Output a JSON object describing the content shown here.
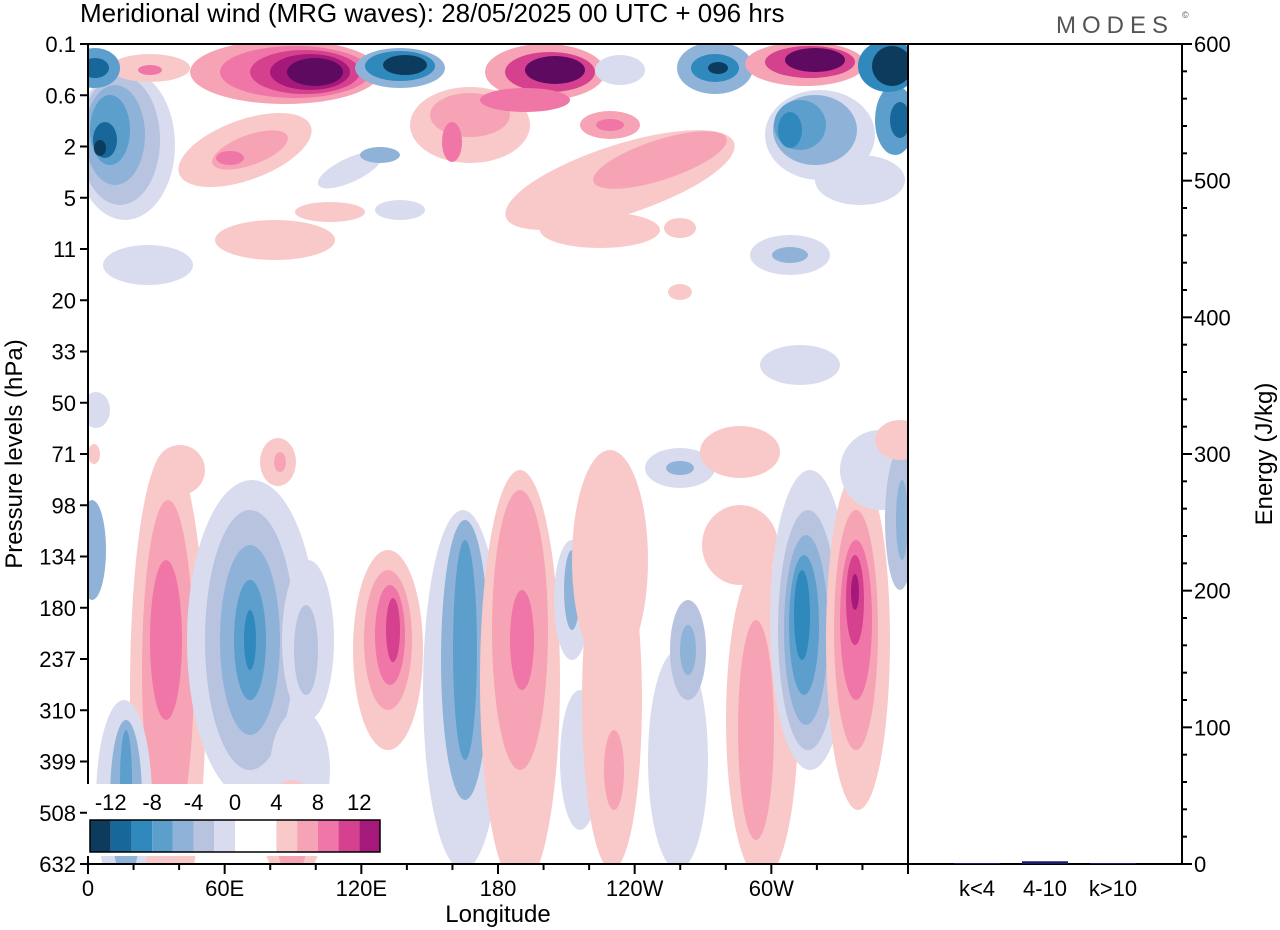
{
  "header": {
    "title": "Meridional wind (MRG waves):  28/05/2025  00 UTC  + 096 hrs",
    "brand": "MODES",
    "brand_mark": "©"
  },
  "chart_data": [
    {
      "type": "heatmap",
      "xlabel": "Longitude",
      "ylabel": "Pressure levels (hPa)",
      "x_ticks": [
        "0",
        "60E",
        "120E",
        "180",
        "120W",
        "60W"
      ],
      "x_tick_degrees": [
        0,
        60,
        120,
        180,
        240,
        300
      ],
      "xlim_degrees": [
        0,
        360
      ],
      "y_ticks": [
        "0.1",
        "0.6",
        "2",
        "5",
        "11",
        "20",
        "33",
        "50",
        "71",
        "98",
        "134",
        "180",
        "237",
        "310",
        "399",
        "508",
        "632"
      ],
      "colorbar": {
        "labels": [
          "-12",
          "-8",
          "-4",
          "0",
          "4",
          "8",
          "12"
        ],
        "label_values": [
          -12,
          -8,
          -4,
          0,
          4,
          8,
          12
        ],
        "levels": [
          -14,
          -12,
          -10,
          -8,
          -6,
          -4,
          -2,
          0,
          2,
          4,
          6,
          8,
          10,
          12,
          14
        ],
        "colors": [
          "#0c3b5e",
          "#17679a",
          "#2f89bd",
          "#5d9fcc",
          "#8fb3d8",
          "#b8c3e0",
          "#d9dcee",
          "#ffffff",
          "#ffffff",
          "#f9c9c9",
          "#f6a4b5",
          "#ef76a6",
          "#d6418f",
          "#a5197a",
          "#5e0a61"
        ]
      },
      "features_approx": [
        {
          "lon": 34,
          "level": "180",
          "value": 8
        },
        {
          "lon": 58,
          "level": "237",
          "value": -10
        },
        {
          "lon": 128,
          "level": "180",
          "value": 10
        },
        {
          "lon": 166,
          "level": "237",
          "value": -8
        },
        {
          "lon": 188,
          "level": "237",
          "value": 8
        },
        {
          "lon": 310,
          "level": "180",
          "value": -11
        },
        {
          "lon": 335,
          "level": "180",
          "value": 12
        },
        {
          "lon": 100,
          "level": "0.1",
          "value": 14
        },
        {
          "lon": 200,
          "level": "0.1",
          "value": 14
        },
        {
          "lon": 320,
          "level": "0.1",
          "value": 14
        },
        {
          "lon": 145,
          "level": "0.1",
          "value": -14
        },
        {
          "lon": 280,
          "level": "0.1",
          "value": -13
        },
        {
          "lon": 360,
          "level": "0.1",
          "value": -14
        },
        {
          "lon": 8,
          "level": "2",
          "value": -12
        }
      ]
    },
    {
      "type": "bar",
      "ylabel": "Energy (J/kg)",
      "categories": [
        "k<4",
        "4-10",
        "k>10"
      ],
      "values": [
        0.4,
        2.0,
        0.3
      ],
      "ylim": [
        0,
        600
      ],
      "y_ticks": [
        "0",
        "100",
        "200",
        "300",
        "400",
        "500",
        "600"
      ],
      "y_tick_values": [
        0,
        100,
        200,
        300,
        400,
        500,
        600
      ],
      "bar_colors": [
        "#1a1a66",
        "#1a1a66",
        "#1a1a66"
      ]
    }
  ]
}
